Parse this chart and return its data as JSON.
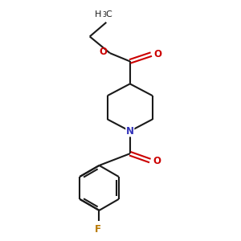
{
  "background_color": "#ffffff",
  "bond_color": "#1a1a1a",
  "nitrogen_color": "#3333bb",
  "oxygen_color": "#cc0000",
  "fluorine_color": "#b87800",
  "line_width": 1.5,
  "figsize": [
    3.0,
    3.0
  ],
  "dpi": 100,
  "xlim": [
    0,
    10
  ],
  "ylim": [
    0,
    10
  ]
}
